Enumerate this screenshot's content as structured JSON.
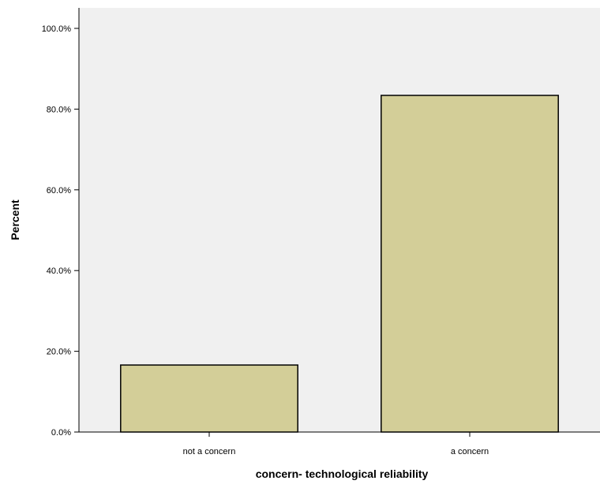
{
  "chart_data": {
    "type": "bar",
    "categories": [
      "not a concern",
      "a concern"
    ],
    "values": [
      16.6,
      83.4
    ],
    "xlabel": "concern- technological reliability",
    "ylabel": "Percent",
    "ylim": [
      0,
      100
    ],
    "yticks": [
      0,
      20,
      40,
      60,
      80,
      100
    ],
    "ytick_labels": [
      "0.0%",
      "20.0%",
      "40.0%",
      "60.0%",
      "80.0%",
      "100.0%"
    ],
    "grid": false,
    "legend": "none",
    "colors": {
      "plot_background": "#f0f0f0",
      "bar_fill": "#d3ce98",
      "bar_stroke": "#000000"
    }
  }
}
